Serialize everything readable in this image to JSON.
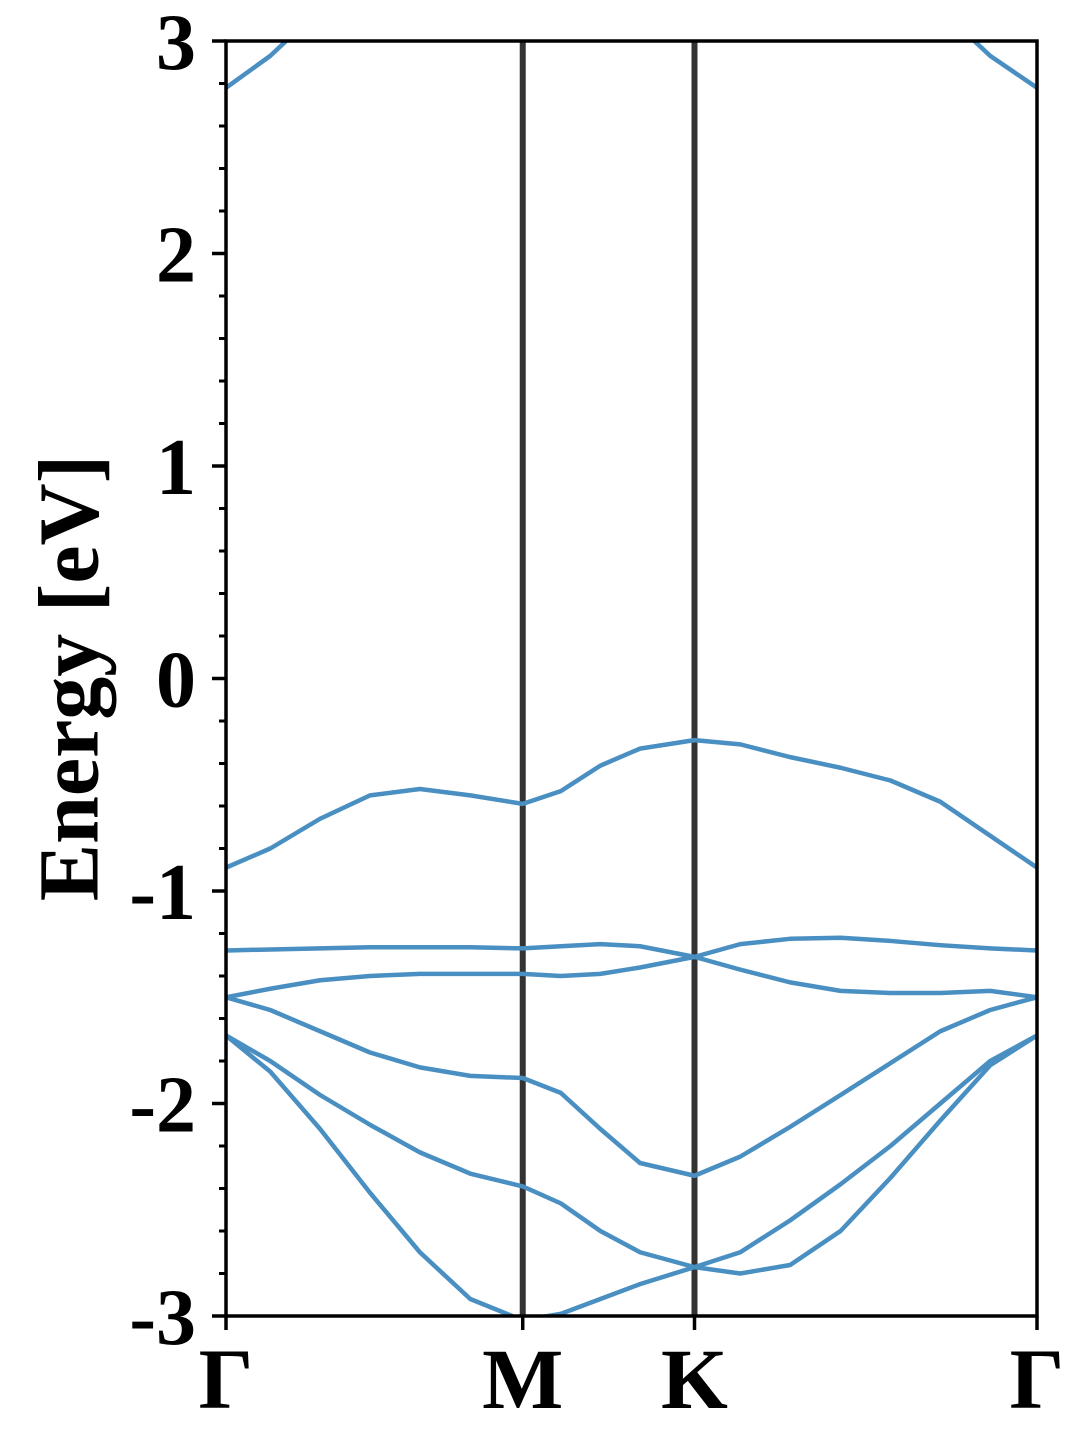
{
  "chart_data": {
    "type": "line",
    "ylabel": "Energy [eV]",
    "x": [
      0,
      0.086,
      0.183,
      0.28,
      0.377,
      0.475,
      0.577,
      0.651,
      0.728,
      0.805,
      0.911,
      1.0,
      1.097,
      1.195,
      1.292,
      1.389,
      1.486,
      1.577
    ],
    "xlim": [
      0,
      1.577
    ],
    "xticks": [
      {
        "value": 0,
        "label": "Γ"
      },
      {
        "value": 0.577,
        "label": "M"
      },
      {
        "value": 0.911,
        "label": "K"
      },
      {
        "value": 1.577,
        "label": "Γ"
      }
    ],
    "ylim": [
      -3,
      3
    ],
    "yticks": [
      -3,
      -2,
      -1,
      0,
      1,
      2,
      3
    ],
    "yminorticks": [
      -2.8,
      -2.6,
      -2.4,
      -2.2,
      -1.8,
      -1.6,
      -1.4,
      -1.2,
      -0.8,
      -0.6,
      -0.4,
      -0.2,
      0.2,
      0.4,
      0.6,
      0.8,
      1.2,
      1.4,
      1.6,
      1.8,
      2.2,
      2.4,
      2.6,
      2.8
    ],
    "vlines_color": "#333333",
    "series": [
      {
        "color": "#4a8fc2",
        "values": [
          -0.89,
          -0.8,
          -0.66,
          -0.55,
          -0.52,
          -0.55,
          -0.59,
          -0.53,
          -0.41,
          -0.33,
          -0.29,
          -0.31,
          -0.37,
          -0.42,
          -0.48,
          -0.58,
          -0.74,
          -0.89
        ]
      },
      {
        "color": "#4a8fc2",
        "values": [
          -1.28,
          -1.275,
          -1.27,
          -1.265,
          -1.265,
          -1.265,
          -1.27,
          -1.26,
          -1.25,
          -1.26,
          -1.31,
          -1.25,
          -1.225,
          -1.22,
          -1.235,
          -1.255,
          -1.27,
          -1.28
        ]
      },
      {
        "color": "#4a8fc2",
        "values": [
          -1.5,
          -1.46,
          -1.42,
          -1.4,
          -1.39,
          -1.39,
          -1.39,
          -1.4,
          -1.39,
          -1.36,
          -1.31,
          -1.37,
          -1.43,
          -1.47,
          -1.48,
          -1.48,
          -1.47,
          -1.5
        ]
      },
      {
        "color": "#4a8fc2",
        "values": [
          -1.5,
          -1.56,
          -1.66,
          -1.76,
          -1.83,
          -1.87,
          -1.88,
          -1.95,
          -2.12,
          -2.28,
          -2.34,
          -2.25,
          -2.11,
          -1.96,
          -1.81,
          -1.66,
          -1.56,
          -1.5
        ]
      },
      {
        "color": "#4a8fc2",
        "values": [
          -1.68,
          -1.8,
          -1.96,
          -2.1,
          -2.23,
          -2.33,
          -2.39,
          -2.47,
          -2.6,
          -2.7,
          -2.77,
          -2.7,
          -2.55,
          -2.38,
          -2.2,
          -2.0,
          -1.8,
          -1.68
        ]
      },
      {
        "color": "#4a8fc2",
        "values": [
          -1.68,
          -1.85,
          -2.12,
          -2.42,
          -2.7,
          -2.92,
          -3.02,
          -2.99,
          -2.92,
          -2.85,
          -2.77,
          -2.8,
          -2.76,
          -2.6,
          -2.35,
          -2.08,
          -1.82,
          -1.68
        ]
      },
      {
        "color": "#4a8fc2",
        "values": [
          2.78,
          2.93,
          3.15,
          null,
          null,
          null,
          null,
          null,
          null,
          null,
          null,
          null,
          null,
          null,
          null,
          3.15,
          2.93,
          2.78
        ]
      }
    ]
  }
}
